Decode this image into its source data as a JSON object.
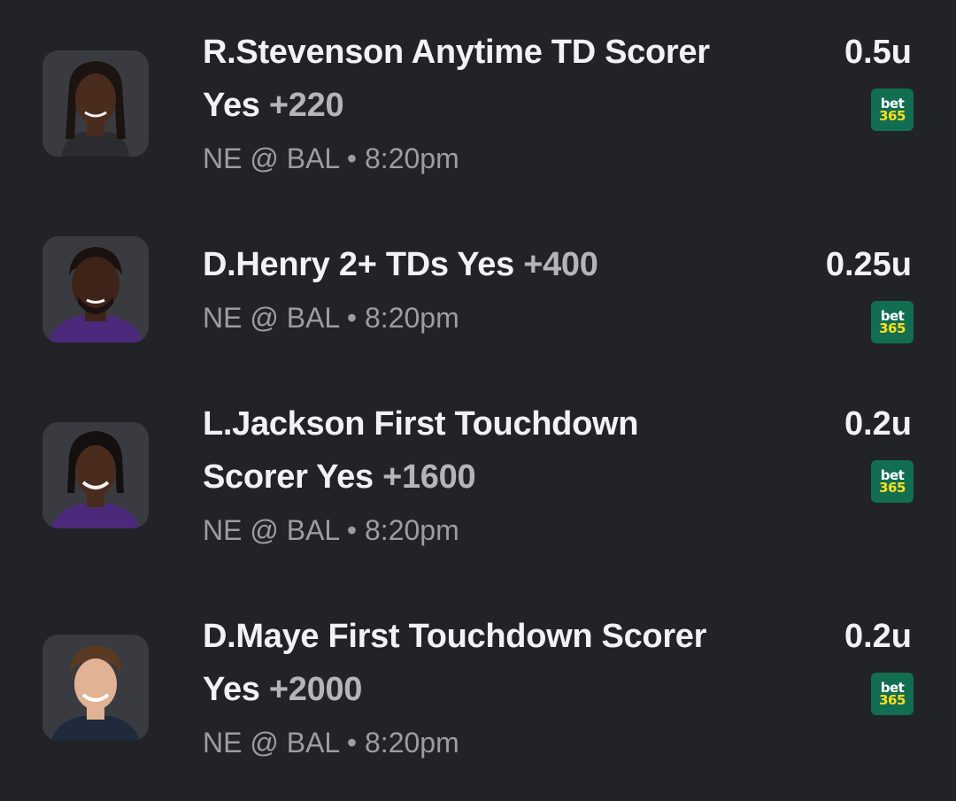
{
  "bets": [
    {
      "title_lines": [
        "R.Stevenson Anytime TD Scorer",
        "Yes"
      ],
      "odds": "+220",
      "game": "NE @ BAL",
      "separator": "•",
      "time": "8:20pm",
      "units": "0.5u",
      "book": {
        "line1": "bet",
        "line2": "365"
      },
      "avatar": {
        "icon": "player-headshot-icon",
        "skin": "#4a2c1f",
        "jersey": "#3a3b40",
        "hair": "#1c1410"
      }
    },
    {
      "title_lines": [
        "D.Henry 2+ TDs Yes"
      ],
      "odds": "+400",
      "game": "NE @ BAL",
      "separator": "•",
      "time": "8:20pm",
      "units": "0.25u",
      "book": {
        "line1": "bet",
        "line2": "365"
      },
      "avatar": {
        "icon": "player-headshot-icon",
        "skin": "#3e2418",
        "jersey": "#4b2a7b",
        "hair": "#1a1210"
      }
    },
    {
      "title_lines": [
        "L.Jackson First Touchdown",
        "Scorer Yes"
      ],
      "odds": "+1600",
      "game": "NE @ BAL",
      "separator": "•",
      "time": "8:20pm",
      "units": "0.2u",
      "book": {
        "line1": "bet",
        "line2": "365"
      },
      "avatar": {
        "icon": "player-headshot-icon",
        "skin": "#4a2c1f",
        "jersey": "#4b2a7b",
        "hair": "#151010"
      }
    },
    {
      "title_lines": [
        "D.Maye First Touchdown Scorer",
        "Yes"
      ],
      "odds": "+2000",
      "game": "NE @ BAL",
      "separator": "•",
      "time": "8:20pm",
      "units": "0.2u",
      "book": {
        "line1": "bet",
        "line2": "365"
      },
      "avatar": {
        "icon": "player-headshot-icon",
        "skin": "#e1b294",
        "jersey": "#1f2a3d",
        "hair": "#5a3a22"
      }
    }
  ],
  "colors": {
    "background": "#222327",
    "title": "#f2f2f4",
    "odds": "#b4b5ba",
    "meta": "#9c9da3",
    "book_green": "#126e51",
    "book_yellow": "#ffdf1b"
  }
}
